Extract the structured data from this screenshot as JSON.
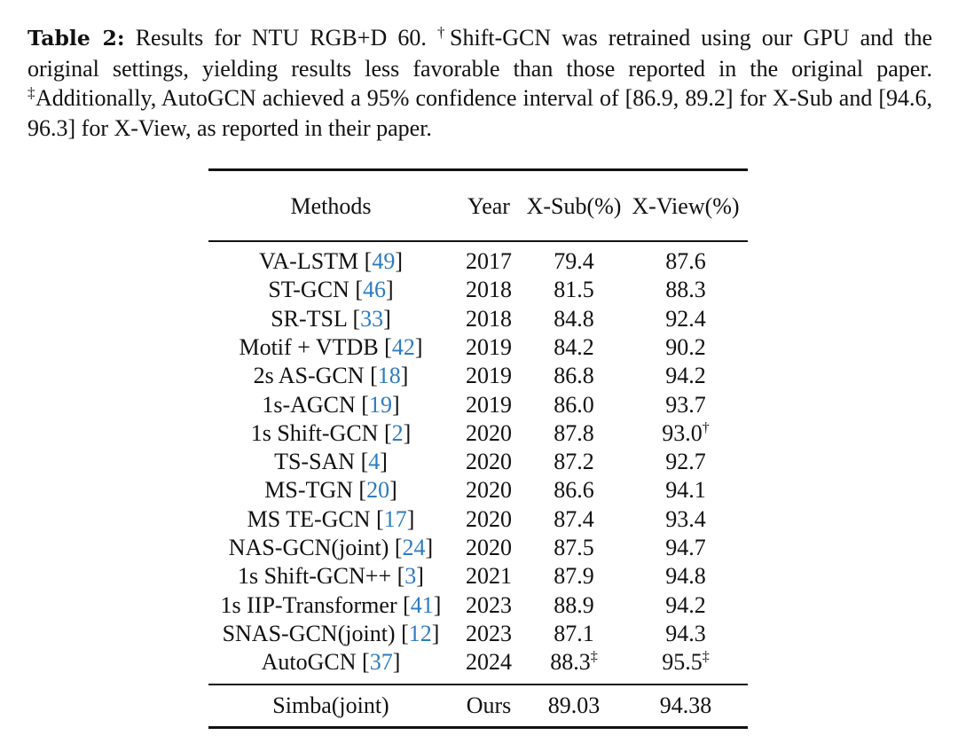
{
  "caption": {
    "label": "Table 2:",
    "text_1": " Results for NTU RGB+D 60. ",
    "dagger": "†",
    "text_2": "Shift-GCN was retrained using our GPU and the original settings, yielding results less favorable than those reported in the original paper. ",
    "ddagger": "‡",
    "text_3": "Additionally, AutoGCN achieved a 95% confidence interval of [86.9, 89.2] for X-Sub and [94.6, 96.3] for X-View, as reported in their paper."
  },
  "table": {
    "headers": [
      "Methods",
      "Year",
      "X-Sub(%)",
      "X-View(%)"
    ],
    "rows": [
      {
        "method": "VA-LSTM",
        "ref": "49",
        "year": "2017",
        "xsub": "79.4",
        "xsub_mark": "",
        "xview": "87.6",
        "xview_mark": ""
      },
      {
        "method": "ST-GCN",
        "ref": "46",
        "year": "2018",
        "xsub": "81.5",
        "xsub_mark": "",
        "xview": "88.3",
        "xview_mark": ""
      },
      {
        "method": "SR-TSL",
        "ref": "33",
        "year": "2018",
        "xsub": "84.8",
        "xsub_mark": "",
        "xview": "92.4",
        "xview_mark": ""
      },
      {
        "method": "Motif + VTDB",
        "ref": "42",
        "year": "2019",
        "xsub": "84.2",
        "xsub_mark": "",
        "xview": "90.2",
        "xview_mark": ""
      },
      {
        "method": "2s AS-GCN",
        "ref": "18",
        "year": "2019",
        "xsub": "86.8",
        "xsub_mark": "",
        "xview": "94.2",
        "xview_mark": ""
      },
      {
        "method": "1s-AGCN",
        "ref": "19",
        "year": "2019",
        "xsub": "86.0",
        "xsub_mark": "",
        "xview": "93.7",
        "xview_mark": ""
      },
      {
        "method": "1s Shift-GCN",
        "ref": "2",
        "year": "2020",
        "xsub": "87.8",
        "xsub_mark": "",
        "xview": "93.0",
        "xview_mark": "†"
      },
      {
        "method": "TS-SAN",
        "ref": "4",
        "year": "2020",
        "xsub": "87.2",
        "xsub_mark": "",
        "xview": "92.7",
        "xview_mark": ""
      },
      {
        "method": "MS-TGN",
        "ref": "20",
        "year": "2020",
        "xsub": "86.6",
        "xsub_mark": "",
        "xview": "94.1",
        "xview_mark": ""
      },
      {
        "method": "MS TE-GCN",
        "ref": "17",
        "year": "2020",
        "xsub": "87.4",
        "xsub_mark": "",
        "xview": "93.4",
        "xview_mark": ""
      },
      {
        "method": "NAS-GCN(joint)",
        "ref": "24",
        "year": "2020",
        "xsub": "87.5",
        "xsub_mark": "",
        "xview": "94.7",
        "xview_mark": ""
      },
      {
        "method": "1s Shift-GCN++",
        "ref": "3",
        "year": "2021",
        "xsub": "87.9",
        "xsub_mark": "",
        "xview": "94.8",
        "xview_mark": ""
      },
      {
        "method": "1s IIP-Transformer",
        "ref": "41",
        "year": "2023",
        "xsub": "88.9",
        "xsub_mark": "",
        "xview": "94.2",
        "xview_mark": ""
      },
      {
        "method": "SNAS-GCN(joint)",
        "ref": "12",
        "year": "2023",
        "xsub": "87.1",
        "xsub_mark": "",
        "xview": "94.3",
        "xview_mark": ""
      },
      {
        "method": "AutoGCN",
        "ref": "37",
        "year": "2024",
        "xsub": "88.3",
        "xsub_mark": "‡",
        "xview": "95.5",
        "xview_mark": "‡"
      }
    ],
    "ours": {
      "method": "Simba(joint)",
      "year": "Ours",
      "xsub": "89.03",
      "xview": "94.38"
    }
  }
}
